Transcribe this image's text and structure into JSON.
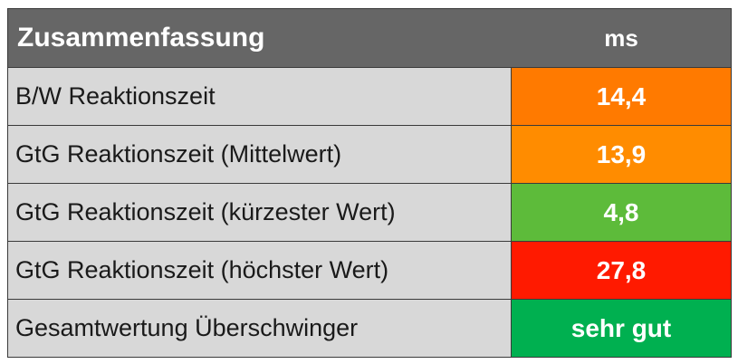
{
  "table": {
    "header": {
      "title": "Zusammenfassung",
      "unit": "ms",
      "background": "#666666"
    },
    "rows": [
      {
        "label": "B/W Reaktionszeit",
        "value": "14,4",
        "color": "#FF7A00"
      },
      {
        "label": "GtG Reaktionszeit (Mittelwert)",
        "value": "13,9",
        "color": "#FF8C00"
      },
      {
        "label": "GtG Reaktionszeit (kürzester Wert)",
        "value": "4,8",
        "color": "#5DBB3A"
      },
      {
        "label": "GtG Reaktionszeit (höchster Wert)",
        "value": "27,8",
        "color": "#FF1A00"
      },
      {
        "label": "Gesamtwertung Überschwinger",
        "value": "sehr gut",
        "color": "#00B050"
      }
    ],
    "label_background": "#D8D8D8"
  }
}
